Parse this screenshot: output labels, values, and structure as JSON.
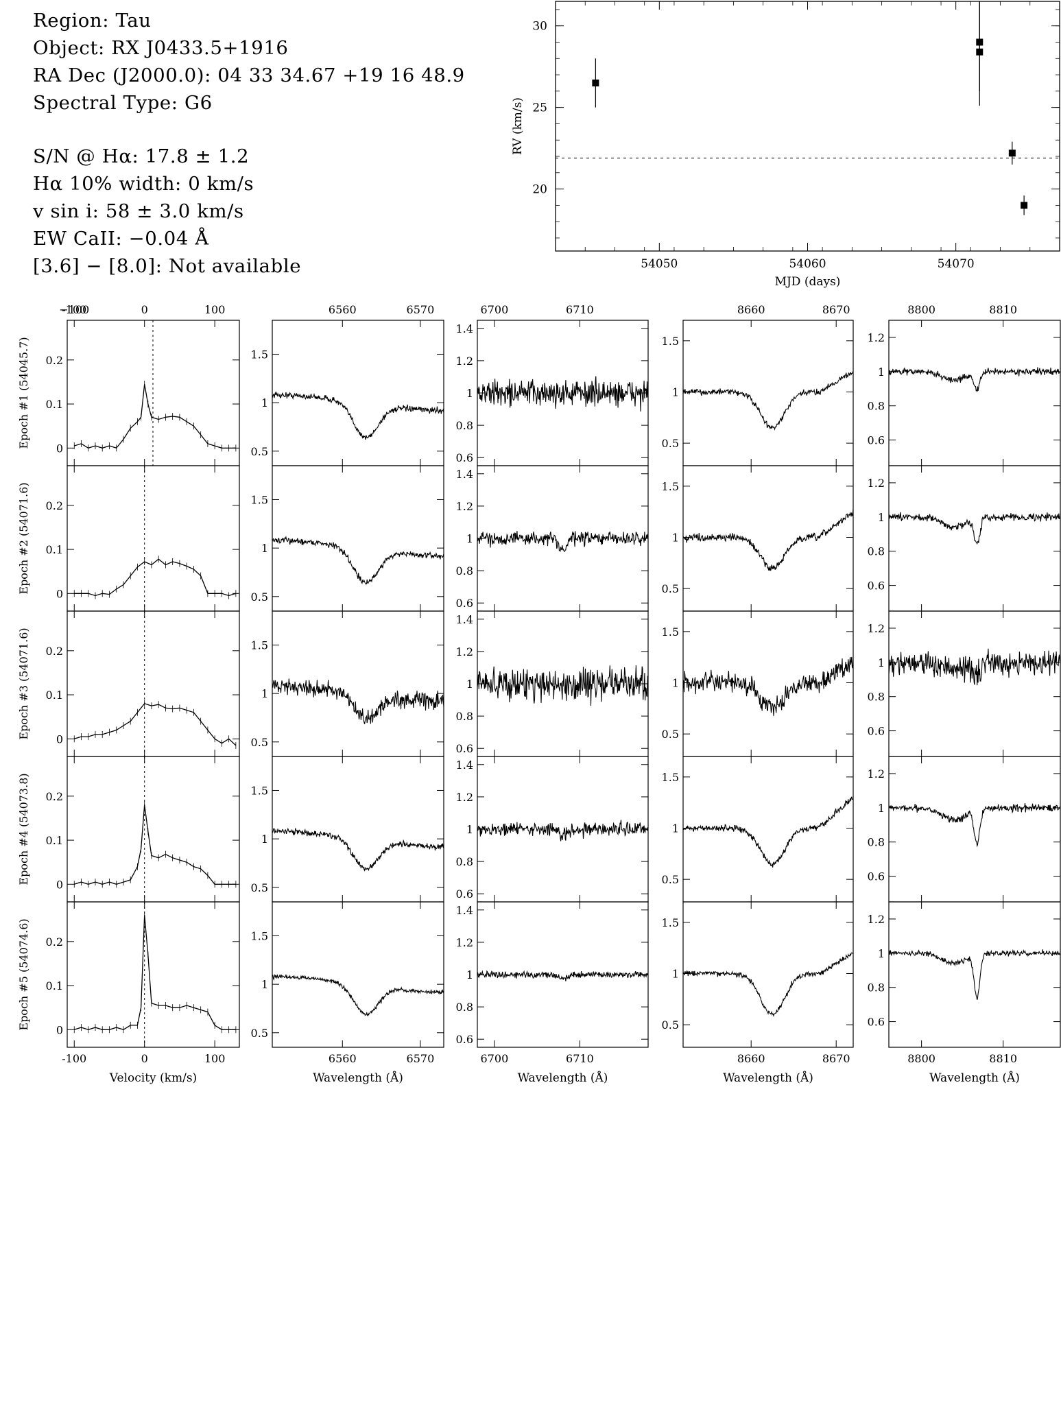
{
  "header": {
    "lines": [
      "Region: Tau",
      "Object: RX J0433.5+1916",
      "RA Dec (J2000.0): 04 33 34.67 +19 16 48.9",
      "Spectral Type: G6",
      "S/N @ Hα: 17.8 ± 1.2",
      "Hα 10% width: 0 km/s",
      "v sin i: 58 ± 3.0 km/s",
      "EW CaII: −0.04 Å",
      "[3.6] − [8.0]: Not available"
    ]
  },
  "chart_data": [
    {
      "id": "rv",
      "type": "scatter",
      "title": "",
      "xlabel": "MJD (days)",
      "ylabel": "RV (km/s)",
      "xlim": [
        54043,
        54077
      ],
      "ylim": [
        16.2,
        31.5
      ],
      "xticks": [
        54050,
        54060,
        54070
      ],
      "yticks": [
        20,
        25,
        30
      ],
      "reference_line_y": 21.9,
      "points": [
        {
          "x": 54045.7,
          "y": 26.5,
          "err": 1.5
        },
        {
          "x": 54071.6,
          "y": 29.0,
          "err": 3.0
        },
        {
          "x": 54071.6,
          "y": 28.4,
          "err": 3.3
        },
        {
          "x": 54073.8,
          "y": 22.2,
          "err": 0.7
        },
        {
          "x": 54074.6,
          "y": 19.0,
          "err": 0.6
        }
      ]
    },
    {
      "id": "line-profiles",
      "type": "line",
      "rows": [
        {
          "label": "Epoch #1 (54045.7)"
        },
        {
          "label": "Epoch #2 (54071.6)"
        },
        {
          "label": "Epoch #3 (54071.6)"
        },
        {
          "label": "Epoch #4 (54073.8)"
        },
        {
          "label": "Epoch #5 (54074.6)"
        }
      ],
      "columns": [
        {
          "xlabel": "Velocity (km/s)",
          "xlim": [
            -110,
            135
          ],
          "xticks": [
            -100,
            0,
            100
          ],
          "ylim": [
            -0.04,
            0.29
          ],
          "yticks": [
            0,
            0.1,
            0.2
          ],
          "ytick_labels": [
            "0",
            "0.1",
            "0.2"
          ],
          "kind": "velocity"
        },
        {
          "xlabel": "Wavelength (Å)",
          "xlim": [
            6551,
            6573
          ],
          "xticks": [
            6560,
            6570
          ],
          "ylim": [
            0.35,
            1.85
          ],
          "yticks": [
            0.5,
            1,
            1.5
          ],
          "ytick_labels": [
            "0.5",
            "1",
            "1.5"
          ],
          "kind": "halpha"
        },
        {
          "xlabel": "Wavelength (Å)",
          "xlim": [
            6698,
            6718
          ],
          "xticks": [
            6700,
            6710
          ],
          "ylim": [
            0.55,
            1.45
          ],
          "yticks": [
            0.6,
            0.8,
            1,
            1.2,
            1.4
          ],
          "ytick_labels": [
            "0.6",
            "0.8",
            "1",
            "1.2",
            "1.4"
          ],
          "kind": "li"
        },
        {
          "xlabel": "Wavelength (Å)",
          "xlim": [
            8652,
            8672
          ],
          "xticks": [
            8660,
            8670
          ],
          "ylim": [
            0.28,
            1.7
          ],
          "yticks": [
            0.5,
            1,
            1.5
          ],
          "ytick_labels": [
            "0.5",
            "1",
            "1.5"
          ],
          "kind": "ca8662"
        },
        {
          "xlabel": "Wavelength (Å)",
          "xlim": [
            8796,
            8817
          ],
          "xticks": [
            8800,
            8810
          ],
          "ylim": [
            0.45,
            1.3
          ],
          "yticks": [
            0.6,
            0.8,
            1,
            1.2
          ],
          "ytick_labels": [
            "0.6",
            "0.8",
            "1",
            "1.2"
          ],
          "kind": "ca8806"
        }
      ],
      "velocity_markers": [
        12,
        0,
        0,
        0,
        0
      ],
      "velocity_profiles": [
        {
          "v": [
            -100,
            -90,
            -80,
            -70,
            -60,
            -50,
            -40,
            -30,
            -20,
            -10,
            -5,
            0,
            5,
            10,
            20,
            30,
            40,
            50,
            60,
            70,
            80,
            90,
            100,
            110,
            120,
            130
          ],
          "y": [
            0.005,
            0.01,
            0.0,
            0.005,
            0.0,
            0.005,
            0.0,
            0.02,
            0.045,
            0.06,
            0.07,
            0.145,
            0.1,
            0.07,
            0.065,
            0.07,
            0.072,
            0.07,
            0.06,
            0.05,
            0.03,
            0.01,
            0.005,
            0.0,
            0.0,
            0.0
          ]
        },
        {
          "v": [
            -100,
            -90,
            -80,
            -70,
            -60,
            -50,
            -40,
            -30,
            -20,
            -10,
            0,
            10,
            20,
            30,
            40,
            50,
            60,
            70,
            80,
            90,
            100,
            110,
            120,
            130
          ],
          "y": [
            0.0,
            0.0,
            0.0,
            -0.005,
            0.0,
            -0.002,
            0.01,
            0.02,
            0.04,
            0.06,
            0.072,
            0.065,
            0.078,
            0.065,
            0.072,
            0.068,
            0.062,
            0.055,
            0.04,
            0.0,
            0.0,
            0.0,
            -0.005,
            0.0
          ]
        },
        {
          "v": [
            -100,
            -90,
            -80,
            -70,
            -60,
            -50,
            -40,
            -30,
            -20,
            -10,
            0,
            10,
            20,
            30,
            40,
            50,
            60,
            70,
            80,
            90,
            100,
            110,
            120,
            130
          ],
          "y": [
            0.0,
            0.005,
            0.005,
            0.01,
            0.01,
            0.015,
            0.02,
            0.03,
            0.04,
            0.06,
            0.08,
            0.075,
            0.078,
            0.07,
            0.068,
            0.07,
            0.065,
            0.06,
            0.04,
            0.02,
            0.0,
            -0.01,
            0.0,
            -0.015
          ]
        },
        {
          "v": [
            -100,
            -90,
            -80,
            -70,
            -60,
            -50,
            -40,
            -30,
            -20,
            -10,
            -5,
            0,
            5,
            10,
            20,
            30,
            40,
            50,
            60,
            70,
            80,
            90,
            100,
            110,
            120,
            130
          ],
          "y": [
            0.0,
            0.005,
            0.0,
            0.005,
            0.0,
            0.005,
            0.0,
            0.005,
            0.01,
            0.04,
            0.08,
            0.18,
            0.12,
            0.065,
            0.06,
            0.068,
            0.06,
            0.055,
            0.05,
            0.04,
            0.035,
            0.02,
            0.0,
            0.0,
            0.0,
            0.0
          ]
        },
        {
          "v": [
            -100,
            -90,
            -80,
            -70,
            -60,
            -50,
            -40,
            -30,
            -20,
            -10,
            -5,
            0,
            5,
            10,
            20,
            30,
            40,
            50,
            60,
            70,
            80,
            90,
            100,
            110,
            120,
            130
          ],
          "y": [
            0.0,
            0.005,
            0.0,
            0.005,
            0.0,
            0.0,
            0.005,
            0.0,
            0.01,
            0.01,
            0.05,
            0.26,
            0.17,
            0.06,
            0.055,
            0.055,
            0.05,
            0.05,
            0.055,
            0.05,
            0.045,
            0.04,
            0.01,
            0.0,
            0.0,
            0.0
          ]
        }
      ],
      "spectrum_model": {
        "points_per_panel": 340,
        "noise": [
          [
            0.035,
            0.03,
            0.08,
            0.028,
            0.018
          ],
          [
            0.03,
            0.03,
            0.04,
            0.035,
            0.02
          ],
          [
            0.1,
            0.08,
            0.1,
            0.09,
            0.07
          ],
          [
            0.025,
            0.03,
            0.04,
            0.03,
            0.02
          ],
          [
            0.02,
            0.02,
            0.02,
            0.025,
            0.015
          ]
        ],
        "halpha": {
          "center": 6563,
          "depth": [
            0.35,
            0.35,
            0.25,
            0.3,
            0.3
          ],
          "width": 2.2
        },
        "li": {
          "center": 6708,
          "depth": [
            0.0,
            0.08,
            0.02,
            0.04,
            0.03
          ],
          "width": 0.6
        },
        "ca8662": {
          "center": 8662.5,
          "depth": [
            0.35,
            0.3,
            0.25,
            0.35,
            0.4
          ],
          "width": 2.0,
          "rise_at": 8668,
          "rise": [
            0.2,
            0.25,
            0.2,
            0.3,
            0.2
          ]
        },
        "ca8806": {
          "center": 8806.8,
          "depth": [
            0.1,
            0.15,
            0.08,
            0.2,
            0.25
          ],
          "width": 0.5,
          "broad_depth": [
            0.05,
            0.06,
            0.05,
            0.07,
            0.06
          ]
        }
      }
    }
  ]
}
